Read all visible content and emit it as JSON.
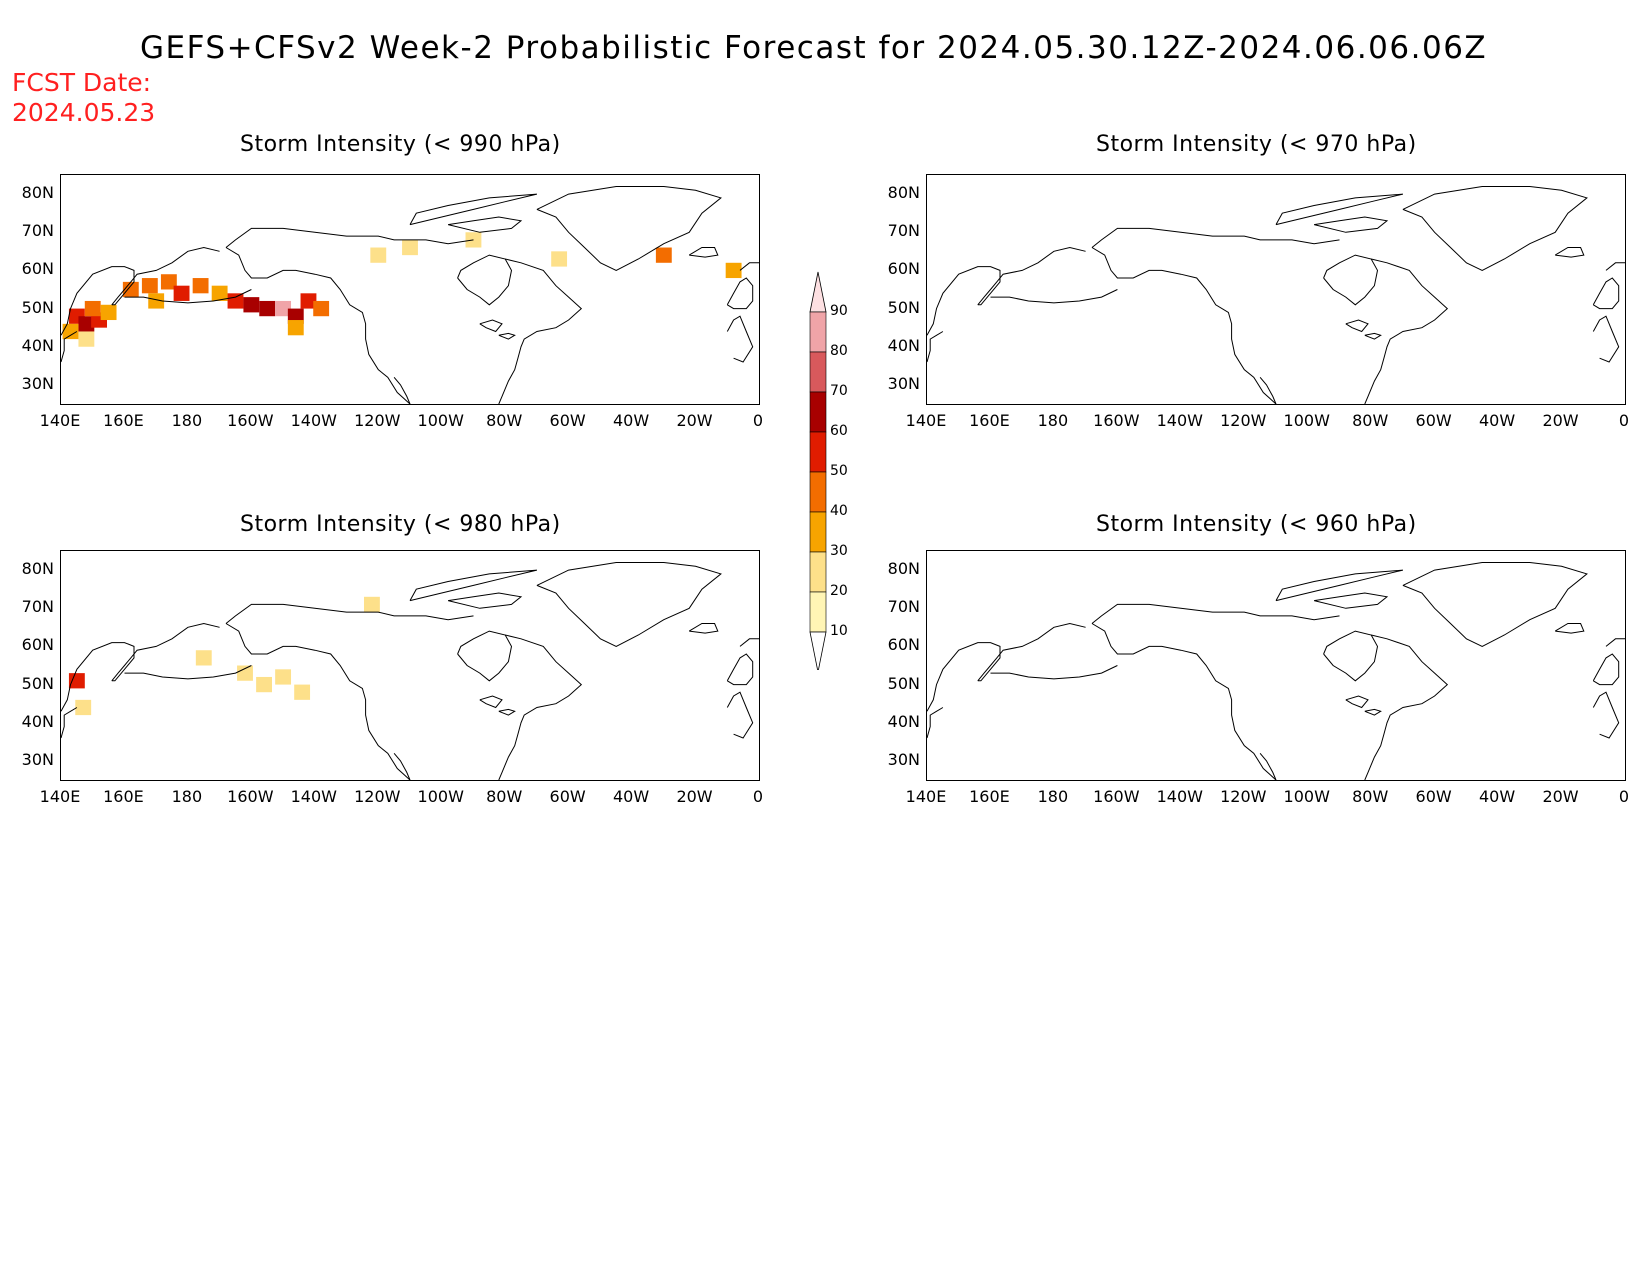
{
  "title": "GEFS+CFSv2 Week-2 Probabilistic Forecast for 2024.05.30.12Z-2024.06.06.06Z",
  "fcst_date_label": "FCST Date:",
  "fcst_date_value": "2024.05.23",
  "colors": {
    "fcst_text": "#ff2020",
    "bins": [
      "#fff5b5",
      "#fde08a",
      "#f7a400",
      "#f36d00",
      "#e01c00",
      "#a80000",
      "#d8595c",
      "#f0a4a8",
      "#fde0e2"
    ]
  },
  "lat_ticks": [
    "80N",
    "70N",
    "60N",
    "50N",
    "40N",
    "30N"
  ],
  "lon_ticks": [
    "140E",
    "160E",
    "180",
    "160W",
    "140W",
    "120W",
    "100W",
    "80W",
    "60W",
    "40W",
    "20W",
    "0"
  ],
  "colorbar": {
    "levels": [
      "10",
      "20",
      "30",
      "40",
      "50",
      "60",
      "70",
      "80",
      "90"
    ]
  },
  "panels": [
    {
      "id": "p990",
      "title": "Storm Intensity (< 990 hPa)",
      "cells": [
        {
          "lon": 145,
          "lat": 48,
          "level": 4
        },
        {
          "lon": 148,
          "lat": 46,
          "level": 5
        },
        {
          "lon": 152,
          "lat": 47,
          "level": 4
        },
        {
          "lon": 150,
          "lat": 50,
          "level": 3
        },
        {
          "lon": 143,
          "lat": 44,
          "level": 2
        },
        {
          "lon": 155,
          "lat": 49,
          "level": 2
        },
        {
          "lon": 148,
          "lat": 42,
          "level": 1
        },
        {
          "lon": 162,
          "lat": 55,
          "level": 3
        },
        {
          "lon": 168,
          "lat": 56,
          "level": 3
        },
        {
          "lon": 174,
          "lat": 57,
          "level": 3
        },
        {
          "lon": 178,
          "lat": 54,
          "level": 4
        },
        {
          "lon": 184,
          "lat": 56,
          "level": 3
        },
        {
          "lon": 190,
          "lat": 54,
          "level": 2
        },
        {
          "lon": 170,
          "lat": 52,
          "level": 2
        },
        {
          "lon": 195,
          "lat": 52,
          "level": 4
        },
        {
          "lon": 200,
          "lat": 51,
          "level": 5
        },
        {
          "lon": 205,
          "lat": 50,
          "level": 5
        },
        {
          "lon": 210,
          "lat": 50,
          "level": 7
        },
        {
          "lon": 214,
          "lat": 48,
          "level": 5
        },
        {
          "lon": 218,
          "lat": 52,
          "level": 4
        },
        {
          "lon": 222,
          "lat": 50,
          "level": 3
        },
        {
          "lon": 214,
          "lat": 45,
          "level": 2
        },
        {
          "lon": 240,
          "lat": 64,
          "level": 1
        },
        {
          "lon": 250,
          "lat": 66,
          "level": 1
        },
        {
          "lon": 270,
          "lat": 68,
          "level": 1
        },
        {
          "lon": 297,
          "lat": 63,
          "level": 1
        },
        {
          "lon": 330,
          "lat": 64,
          "level": 3
        },
        {
          "lon": 352,
          "lat": 60,
          "level": 2
        }
      ]
    },
    {
      "id": "p970",
      "title": "Storm Intensity (< 970 hPa)",
      "cells": []
    },
    {
      "id": "p980",
      "title": "Storm Intensity (< 980 hPa)",
      "cells": [
        {
          "lon": 145,
          "lat": 51,
          "level": 4
        },
        {
          "lon": 147,
          "lat": 44,
          "level": 1
        },
        {
          "lon": 185,
          "lat": 57,
          "level": 1
        },
        {
          "lon": 198,
          "lat": 53,
          "level": 1
        },
        {
          "lon": 204,
          "lat": 50,
          "level": 1
        },
        {
          "lon": 210,
          "lat": 52,
          "level": 1
        },
        {
          "lon": 216,
          "lat": 48,
          "level": 1
        },
        {
          "lon": 238,
          "lat": 71,
          "level": 1
        }
      ]
    },
    {
      "id": "p960",
      "title": "Storm Intensity (< 960 hPa)",
      "cells": []
    }
  ]
}
